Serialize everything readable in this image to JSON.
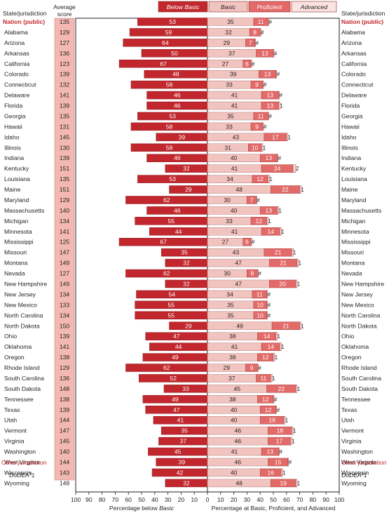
{
  "header": {
    "state_col": "State/jurisdiction",
    "score_col_line1": "Average",
    "score_col_line2": "score",
    "state_col_right": "State/jurisdiction"
  },
  "legend": [
    {
      "label": "Below Basic",
      "color": "#c1272d",
      "text_color": "#ffffff"
    },
    {
      "label": "Basic",
      "color": "#f2c4c0",
      "text_color": "#231f20"
    },
    {
      "label": "Proficient",
      "color": "#e26a68",
      "text_color": "#ffffff"
    },
    {
      "label": "Advanced",
      "color": "#fbe3e1",
      "text_color": "#231f20"
    }
  ],
  "colors": {
    "below_basic": "#c1272d",
    "basic": "#f2c4c0",
    "proficient": "#e26a68",
    "advanced": "#fbe3e1",
    "score_column": "#f2b8b1",
    "highlight_text": "#c1272d"
  },
  "other_jurisdiction_label": "Other jurisdiction",
  "dodea": {
    "label": "DoDEA",
    "superscript": "1",
    "symbol": "‡"
  },
  "chart_data": {
    "type": "bar",
    "title": "",
    "x_axis_left_label": "Percentage below Basic",
    "x_axis_right_label": "Percentage at Basic, Proficient, and Advanced",
    "x_axis_left_italic_word": "Basic",
    "xlim_left": [
      100,
      0
    ],
    "xlim_right": [
      0,
      100
    ],
    "ticks": [
      100,
      90,
      80,
      70,
      60,
      50,
      40,
      30,
      20,
      10,
      0,
      10,
      20,
      30,
      40,
      50,
      60,
      70,
      80,
      90,
      100
    ],
    "series_names": [
      "Below Basic",
      "Basic",
      "Proficient",
      "Advanced"
    ],
    "rows": [
      {
        "state": "Nation (public)",
        "score": "135",
        "below_basic": 53,
        "basic": 35,
        "proficient": 11,
        "advanced": "#",
        "highlight": true
      },
      {
        "state": "Alabama",
        "score": "129",
        "below_basic": 59,
        "basic": 32,
        "proficient": 8,
        "advanced": "#"
      },
      {
        "state": "Arizona",
        "score": "127",
        "below_basic": 64,
        "basic": 29,
        "proficient": 7,
        "advanced": "#"
      },
      {
        "state": "Arkansas",
        "score": "136",
        "below_basic": 50,
        "basic": 37,
        "proficient": 13,
        "advanced": "#"
      },
      {
        "state": "California",
        "score": "123",
        "below_basic": 67,
        "basic": 27,
        "proficient": 6,
        "advanced": "#"
      },
      {
        "state": "Colorado",
        "score": "139",
        "below_basic": 48,
        "basic": 39,
        "proficient": 13,
        "advanced": "#"
      },
      {
        "state": "Connecticut",
        "score": "132",
        "below_basic": 58,
        "basic": 33,
        "proficient": 9,
        "advanced": "#"
      },
      {
        "state": "Delaware",
        "score": "141",
        "below_basic": 46,
        "basic": 41,
        "proficient": 13,
        "advanced": "#"
      },
      {
        "state": "Florida",
        "score": "139",
        "below_basic": 46,
        "basic": 41,
        "proficient": 13,
        "advanced": "1"
      },
      {
        "state": "Georgia",
        "score": "135",
        "below_basic": 53,
        "basic": 35,
        "proficient": 11,
        "advanced": "#"
      },
      {
        "state": "Hawaii",
        "score": "131",
        "below_basic": 58,
        "basic": 33,
        "proficient": 9,
        "advanced": "#"
      },
      {
        "state": "Idaho",
        "score": "145",
        "below_basic": 39,
        "basic": 43,
        "proficient": 17,
        "advanced": "1"
      },
      {
        "state": "Illinois",
        "score": "130",
        "below_basic": 58,
        "basic": 31,
        "proficient": 10,
        "advanced": "1"
      },
      {
        "state": "Indiana",
        "score": "139",
        "below_basic": 46,
        "basic": 40,
        "proficient": 13,
        "advanced": "#"
      },
      {
        "state": "Kentucky",
        "score": "151",
        "below_basic": 32,
        "basic": 41,
        "proficient": 24,
        "advanced": "2"
      },
      {
        "state": "Louisiana",
        "score": "135",
        "below_basic": 53,
        "basic": 34,
        "proficient": 12,
        "advanced": "1"
      },
      {
        "state": "Maine",
        "score": "151",
        "below_basic": 29,
        "basic": 48,
        "proficient": 22,
        "advanced": "1"
      },
      {
        "state": "Maryland",
        "score": "129",
        "below_basic": 62,
        "basic": 30,
        "proficient": 7,
        "advanced": "#"
      },
      {
        "state": "Massachusetts",
        "score": "140",
        "below_basic": 46,
        "basic": 40,
        "proficient": 13,
        "advanced": "1"
      },
      {
        "state": "Michigan",
        "score": "134",
        "below_basic": 55,
        "basic": 33,
        "proficient": 12,
        "advanced": "1"
      },
      {
        "state": "Minnesota",
        "score": "141",
        "below_basic": 44,
        "basic": 41,
        "proficient": 14,
        "advanced": "1"
      },
      {
        "state": "Mississippi",
        "score": "125",
        "below_basic": 67,
        "basic": 27,
        "proficient": 6,
        "advanced": "#"
      },
      {
        "state": "Missouri",
        "score": "147",
        "below_basic": 35,
        "basic": 43,
        "proficient": 21,
        "advanced": "1"
      },
      {
        "state": "Montana",
        "score": "149",
        "below_basic": 32,
        "basic": 47,
        "proficient": 21,
        "advanced": "1"
      },
      {
        "state": "Nevada",
        "score": "127",
        "below_basic": 62,
        "basic": 30,
        "proficient": 8,
        "advanced": "#"
      },
      {
        "state": "New Hampshire",
        "score": "149",
        "below_basic": 32,
        "basic": 47,
        "proficient": 20,
        "advanced": "1"
      },
      {
        "state": "New Jersey",
        "score": "134",
        "below_basic": 54,
        "basic": 34,
        "proficient": 11,
        "advanced": "#"
      },
      {
        "state": "New Mexico",
        "score": "133",
        "below_basic": 55,
        "basic": 35,
        "proficient": 10,
        "advanced": "#"
      },
      {
        "state": "North Carolina",
        "score": "134",
        "below_basic": 55,
        "basic": 35,
        "proficient": 10,
        "advanced": "#"
      },
      {
        "state": "North Dakota",
        "score": "150",
        "below_basic": 29,
        "basic": 49,
        "proficient": 21,
        "advanced": "1"
      },
      {
        "state": "Ohio",
        "score": "139",
        "below_basic": 47,
        "basic": 38,
        "proficient": 14,
        "advanced": "1"
      },
      {
        "state": "Oklahoma",
        "score": "141",
        "below_basic": 44,
        "basic": 41,
        "proficient": 14,
        "advanced": "1"
      },
      {
        "state": "Oregon",
        "score": "138",
        "below_basic": 49,
        "basic": 38,
        "proficient": 12,
        "advanced": "1"
      },
      {
        "state": "Rhode Island",
        "score": "129",
        "below_basic": 62,
        "basic": 29,
        "proficient": 9,
        "advanced": "#"
      },
      {
        "state": "South Carolina",
        "score": "136",
        "below_basic": 52,
        "basic": 37,
        "proficient": 11,
        "advanced": "1"
      },
      {
        "state": "South Dakota",
        "score": "148",
        "below_basic": 33,
        "basic": 45,
        "proficient": 22,
        "advanced": "1"
      },
      {
        "state": "Tennessee",
        "score": "138",
        "below_basic": 49,
        "basic": 38,
        "proficient": 12,
        "advanced": "#"
      },
      {
        "state": "Texas",
        "score": "139",
        "below_basic": 47,
        "basic": 40,
        "proficient": 12,
        "advanced": "#"
      },
      {
        "state": "Utah",
        "score": "144",
        "below_basic": 41,
        "basic": 40,
        "proficient": 18,
        "advanced": "1"
      },
      {
        "state": "Vermont",
        "score": "147",
        "below_basic": 35,
        "basic": 46,
        "proficient": 18,
        "advanced": "1"
      },
      {
        "state": "Virginia",
        "score": "145",
        "below_basic": 37,
        "basic": 46,
        "proficient": 17,
        "advanced": "1"
      },
      {
        "state": "Washington",
        "score": "140",
        "below_basic": 45,
        "basic": 41,
        "proficient": 13,
        "advanced": "#"
      },
      {
        "state": "West Virginia",
        "score": "144",
        "below_basic": 39,
        "basic": 46,
        "proficient": 15,
        "advanced": "#"
      },
      {
        "state": "Wisconsin",
        "score": "143",
        "below_basic": 42,
        "basic": 40,
        "proficient": 16,
        "advanced": "1"
      },
      {
        "state": "Wyoming",
        "score": "148",
        "below_basic": 32,
        "basic": 48,
        "proficient": 19,
        "advanced": "1"
      }
    ]
  }
}
